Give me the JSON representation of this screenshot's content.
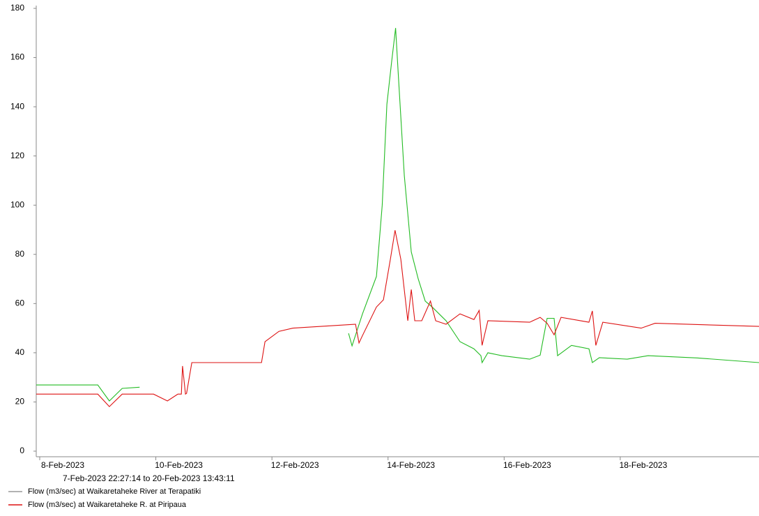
{
  "chart_data": {
    "type": "line",
    "subtitle": "7-Feb-2023 22:27:14 to 20-Feb-2023 13:43:11",
    "xlim": [
      -0.06,
      12.39
    ],
    "xticks": [
      {
        "value": 0,
        "label": "8-Feb-2023"
      },
      {
        "value": 2,
        "label": "10-Feb-2023"
      },
      {
        "value": 4,
        "label": "12-Feb-2023"
      },
      {
        "value": 6,
        "label": "14-Feb-2023"
      },
      {
        "value": 8,
        "label": "16-Feb-2023"
      },
      {
        "value": 10,
        "label": "18-Feb-2023"
      }
    ],
    "ylim": [
      0,
      180
    ],
    "yticks": [
      0,
      20,
      40,
      60,
      80,
      100,
      120,
      140,
      160,
      180
    ],
    "series": [
      {
        "name": "Flow (m3/sec) at Waikaretaheke River at Terapatiki",
        "color": "#22bb22",
        "legend_color": "#999999",
        "x": [
          -0.06,
          1.0,
          1.2,
          1.42,
          1.72,
          2.5,
          5.32,
          5.38,
          5.56,
          5.8,
          5.9,
          5.98,
          6.06,
          6.13,
          6.18,
          6.28,
          6.4,
          6.52,
          6.64,
          6.76,
          7.0,
          7.24,
          7.48,
          7.6,
          7.62,
          7.72,
          7.96,
          8.44,
          8.62,
          8.74,
          8.86,
          8.92,
          9.16,
          9.46,
          9.52,
          9.64,
          10.12,
          10.48,
          11.32,
          12.39
        ],
        "values": [
          26.9,
          26.9,
          20.4,
          25.5,
          26.0,
          null,
          47.9,
          42.8,
          55.8,
          71,
          100,
          141,
          158,
          172,
          152,
          112,
          81,
          70,
          61,
          58.6,
          53,
          44.5,
          41.6,
          38.8,
          36,
          40,
          38.8,
          37.4,
          39,
          54,
          54,
          38.8,
          43,
          41.6,
          36,
          38,
          37.4,
          38.8,
          37.9,
          36
        ]
      },
      {
        "name": "Flow (m3/sec) at Waikaretaheke R. at Piripaua",
        "color": "#dd1111",
        "legend_color": "#dd1111",
        "x": [
          -0.06,
          1.0,
          1.2,
          1.42,
          1.96,
          2.2,
          2.38,
          2.44,
          2.46,
          2.51,
          2.53,
          2.62,
          2.8,
          3.82,
          3.88,
          4.12,
          4.36,
          5.44,
          5.5,
          5.56,
          5.8,
          5.92,
          6.04,
          6.12,
          6.22,
          6.34,
          6.4,
          6.46,
          6.58,
          6.73,
          6.82,
          7.0,
          7.24,
          7.48,
          7.57,
          7.62,
          7.72,
          8.44,
          8.62,
          8.74,
          8.86,
          8.98,
          9.46,
          9.52,
          9.58,
          9.7,
          10.36,
          10.6,
          12.39
        ],
        "values": [
          23.2,
          23.2,
          18.1,
          23.2,
          23.2,
          20.4,
          23.2,
          23.2,
          34.6,
          23.2,
          23.5,
          36,
          36,
          36,
          44.5,
          48.7,
          50,
          51.6,
          44,
          47,
          58.6,
          61.5,
          78,
          89.8,
          78,
          53,
          65.7,
          53,
          53,
          61,
          53,
          51.6,
          55.8,
          53.5,
          57.2,
          43,
          53,
          52.4,
          54.4,
          52,
          47.3,
          54.4,
          52.4,
          57,
          43,
          52.4,
          50,
          52,
          50.7
        ]
      }
    ]
  }
}
